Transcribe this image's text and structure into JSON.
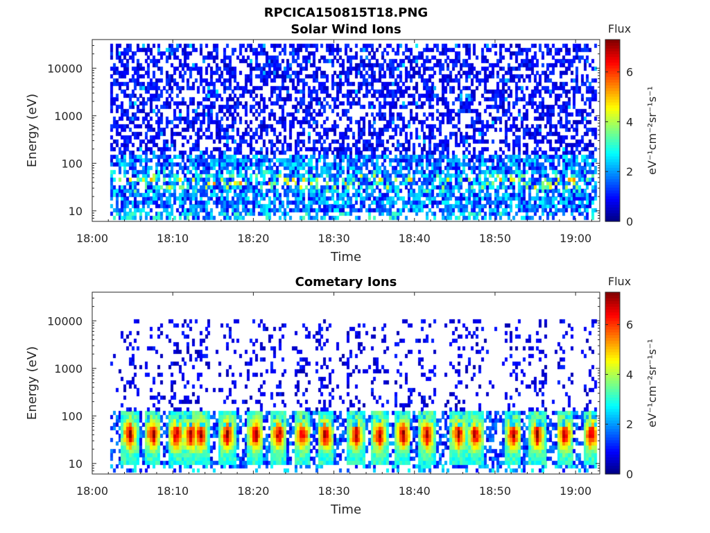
{
  "figure": {
    "filename": "RPCICA150815T18.PNG"
  },
  "colorbar": {
    "label": "Flux",
    "unit": "eV⁻¹cm⁻²sr⁻¹s⁻¹",
    "ticks": [
      "0",
      "2",
      "4",
      "6"
    ],
    "range": [
      0,
      7.3
    ],
    "colormap": "jet"
  },
  "chart_data": [
    {
      "type": "heatmap",
      "title": "Solar Wind Ions",
      "xlabel": "Time",
      "ylabel": "Energy (eV)",
      "x_tick_labels": [
        "18:00",
        "18:10",
        "18:20",
        "18:30",
        "18:40",
        "18:50",
        "19:00"
      ],
      "x_range_minutes": [
        0,
        63
      ],
      "data_start_minute": 2.3,
      "y_scale": "log",
      "y_tick_labels": [
        "10",
        "100",
        "1000",
        "10000"
      ],
      "y_range_eV": [
        6,
        40000
      ],
      "z_label": "Flux",
      "z_range": [
        0,
        7.3
      ],
      "description_values": {
        "background_level": 1.0,
        "low_energy_band_eV": [
          10,
          100
        ],
        "low_energy_band_level": 3.0
      }
    },
    {
      "type": "heatmap",
      "title": "Cometary Ions",
      "xlabel": "Time",
      "ylabel": "Energy (eV)",
      "x_tick_labels": [
        "18:00",
        "18:10",
        "18:20",
        "18:30",
        "18:40",
        "18:50",
        "19:00"
      ],
      "x_range_minutes": [
        0,
        63
      ],
      "data_start_minute": 2.3,
      "y_scale": "log",
      "y_tick_labels": [
        "10",
        "100",
        "1000",
        "10000"
      ],
      "y_range_eV": [
        6,
        40000
      ],
      "z_label": "Flux",
      "z_range": [
        0,
        7.3
      ],
      "description_values": {
        "peak_energy_eV": 40,
        "peak_level": 6.5,
        "burst_minutes": [
          4.7,
          7.6,
          10.5,
          12.3,
          13.5,
          16.8,
          20.3,
          23.2,
          26.1,
          29.0,
          32.8,
          35.7,
          38.6,
          41.6,
          45.5,
          47.6,
          52.3,
          55.3,
          58.7,
          62.0
        ]
      }
    }
  ]
}
